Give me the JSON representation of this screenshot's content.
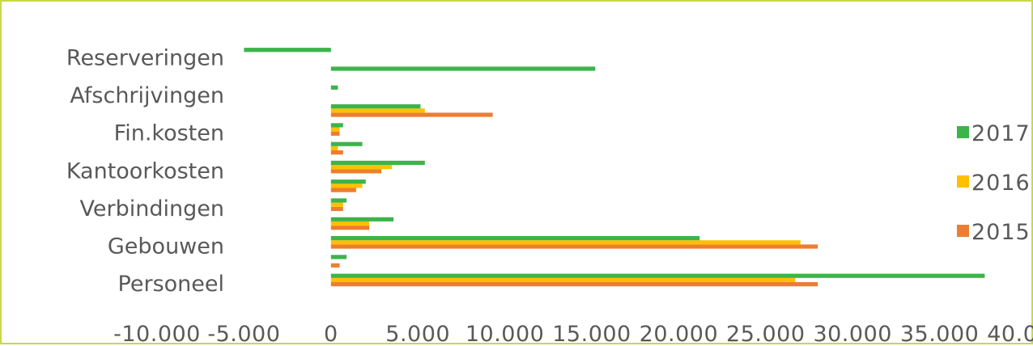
{
  "chart_data": {
    "type": "bar",
    "orientation": "horizontal",
    "title": "",
    "xlabel": "",
    "ylabel": "",
    "xlim": [
      -10000,
      40000
    ],
    "x_ticks": [
      -10000,
      -5000,
      0,
      5000,
      10000,
      15000,
      20000,
      25000,
      30000,
      35000,
      40000
    ],
    "x_tick_labels": [
      "-10.000",
      "-5.000",
      "0",
      "5.000",
      "10.000",
      "15.000",
      "20.000",
      "25.000",
      "30.000",
      "35.000",
      "40.000"
    ],
    "grid": false,
    "legend_position": "right",
    "categories": [
      "Personeel",
      "",
      "Gebouwen",
      "",
      "Verbindingen",
      "",
      "Kantoorkosten",
      "",
      "Fin.kosten",
      "",
      "Afschrijvingen",
      "",
      "Reserveringen",
      ""
    ],
    "series": [
      {
        "name": "2015",
        "color": "#ed7d31",
        "values": [
          28000,
          500,
          28000,
          2200,
          700,
          1450,
          2900,
          700,
          500,
          9300,
          0,
          0,
          0,
          0
        ]
      },
      {
        "name": "2016",
        "color": "#ffc000",
        "values": [
          26700,
          0,
          27000,
          2200,
          700,
          1800,
          3500,
          400,
          500,
          5400,
          0,
          0,
          0,
          0
        ]
      },
      {
        "name": "2017",
        "color": "#3cb44b",
        "values": [
          37600,
          900,
          21200,
          3600,
          900,
          2000,
          5400,
          1800,
          700,
          5150,
          400,
          15200,
          -5000,
          0
        ]
      }
    ]
  }
}
